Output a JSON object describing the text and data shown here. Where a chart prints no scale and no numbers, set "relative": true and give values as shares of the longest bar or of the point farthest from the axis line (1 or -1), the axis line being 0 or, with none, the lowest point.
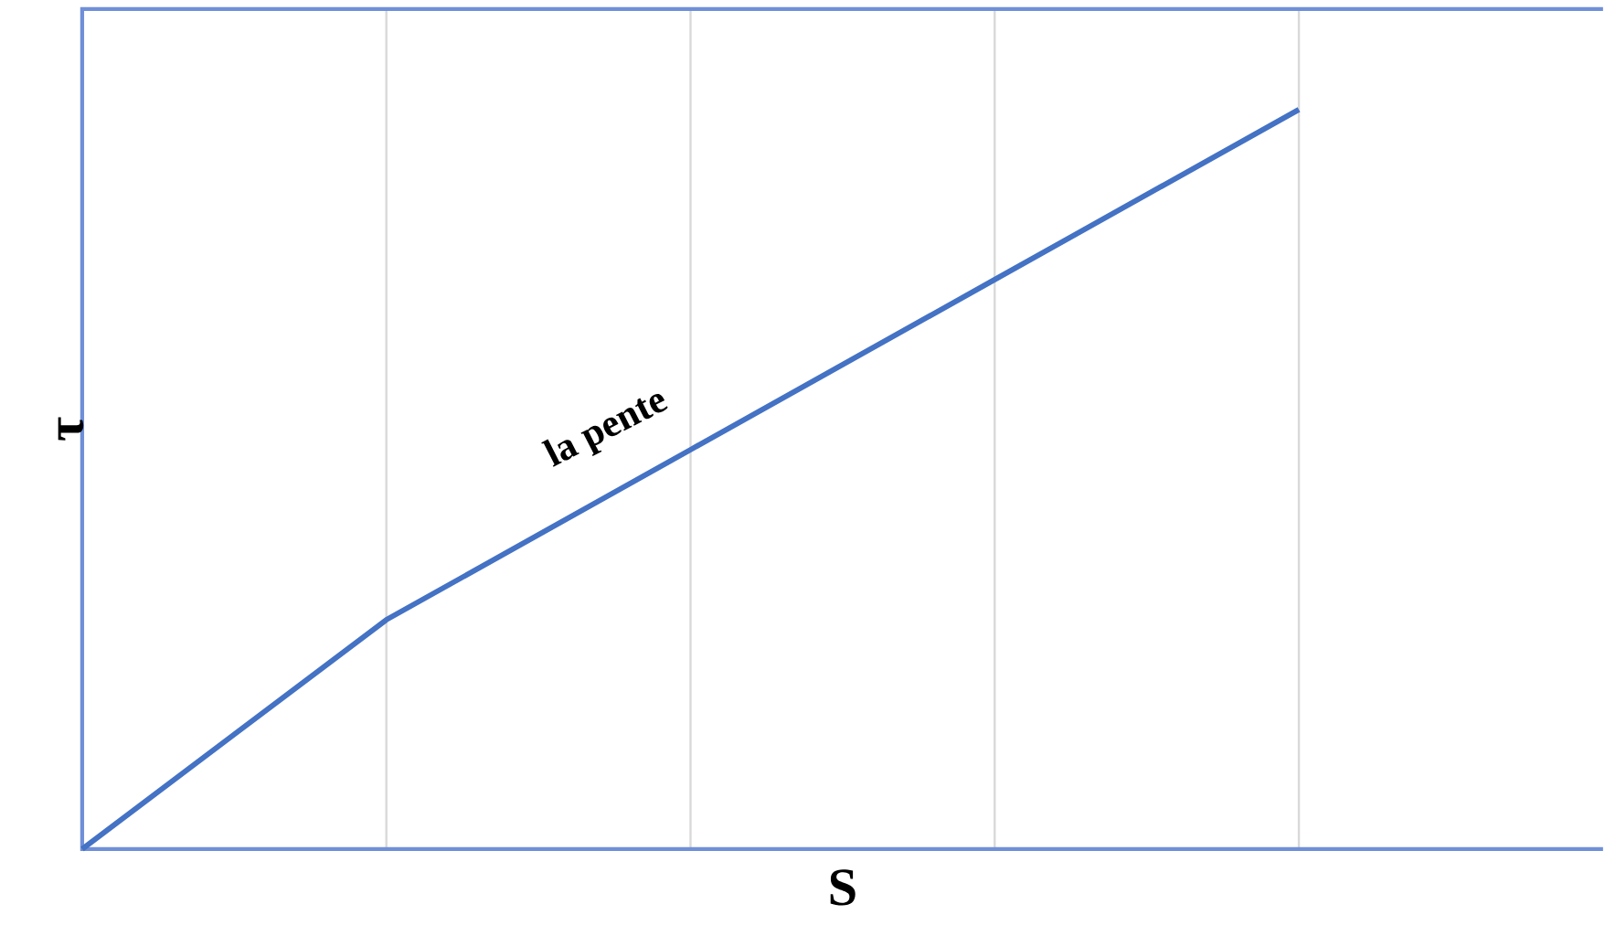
{
  "chart_data": {
    "type": "line",
    "relative": true,
    "xlabel": "S",
    "ylabel": "τ",
    "categories": [
      null,
      null,
      null,
      null,
      null,
      null
    ],
    "series": [
      {
        "color": "#4472c4",
        "values": [
          0,
          0.31,
          0.54,
          0.77,
          1,
          null
        ]
      }
    ],
    "annotations": [
      "la pente"
    ],
    "grid": "x"
  }
}
